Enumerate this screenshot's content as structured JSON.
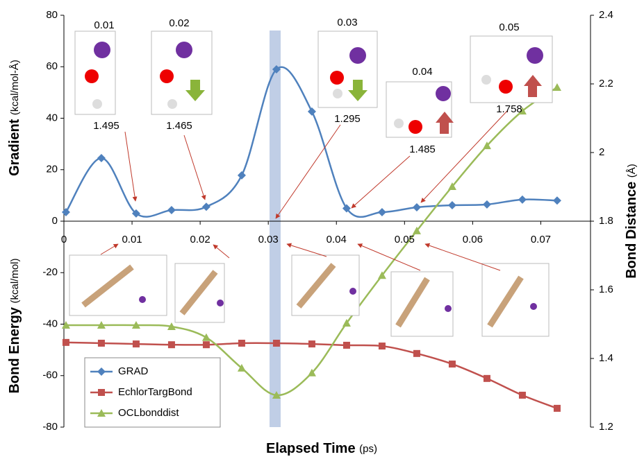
{
  "chart_data": {
    "type": "line",
    "x": [
      0.0003,
      0.0055,
      0.0106,
      0.0158,
      0.0209,
      0.0261,
      0.0312,
      0.0364,
      0.0415,
      0.0467,
      0.0518,
      0.057,
      0.0621,
      0.0673,
      0.0724
    ],
    "series": [
      {
        "name": "GRAD",
        "color": "#4f81bd",
        "marker": "diamond",
        "axis": "y",
        "values": [
          3.5,
          24.5,
          3,
          4.3,
          5.6,
          17.8,
          59,
          42.6,
          5,
          3.5,
          5.4,
          6.2,
          6.5,
          8.4,
          8
        ]
      },
      {
        "name": "EchlorTargBond",
        "color": "#c0504d",
        "marker": "square",
        "axis": "y",
        "values": [
          -47.1,
          -47.4,
          -47.7,
          -48,
          -48,
          -47.4,
          -47.4,
          -47.7,
          -48.2,
          -48.5,
          -51.4,
          -55.5,
          -61.1,
          -67.6,
          -72.7
        ]
      },
      {
        "name": "OCLbonddist",
        "color": "#9bbb59",
        "marker": "triangle",
        "axis": "y2",
        "values": [
          1.497,
          1.497,
          1.497,
          1.493,
          1.461,
          1.372,
          1.293,
          1.358,
          1.503,
          1.642,
          1.772,
          1.901,
          2.02,
          2.121,
          2.19
        ]
      }
    ],
    "xlim": [
      0,
      0.0773
    ],
    "xticks": [
      0,
      0.01,
      0.02,
      0.03,
      0.04,
      0.05,
      0.06,
      0.07
    ],
    "ylim": [
      -80,
      80
    ],
    "yticks": [
      -80,
      -60,
      -40,
      -20,
      0,
      20,
      40,
      60,
      80
    ],
    "y2lim": [
      1.2,
      2.4
    ],
    "y2ticks": [
      1.2,
      1.4,
      1.6,
      1.8,
      2,
      2.2,
      2.4
    ],
    "highlight_x": 0.031,
    "xlabel": {
      "text": "Elapsed Time",
      "unit": "(ps)"
    },
    "ylabel_top": {
      "text": "Gradient",
      "unit": "(kcal/mol-Å)"
    },
    "ylabel_bottom": {
      "text": "Bond Energy",
      "unit": "(kcal/mol)"
    },
    "y2label": {
      "text": "Bond Distance",
      "unit": "(Å)"
    },
    "annotations": {
      "times": [
        "0.01",
        "0.02",
        "0.03",
        "0.04",
        "0.05"
      ],
      "distances": [
        "1.495",
        "1.465",
        "1.295",
        "1.485",
        "1.758"
      ]
    },
    "legend": "lower left"
  }
}
